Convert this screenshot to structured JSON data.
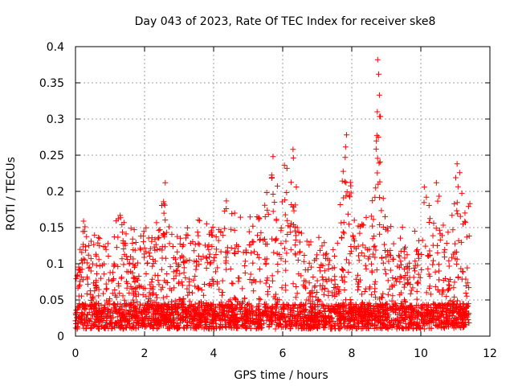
{
  "chart_data": {
    "type": "scatter",
    "title": "Day 043 of 2023, Rate Of TEC Index for receiver ske8",
    "xlabel": "GPS time / hours",
    "ylabel": "ROTI / TECUs",
    "xlim": [
      0,
      12
    ],
    "ylim": [
      0,
      0.4
    ],
    "x_ticks": [
      0,
      2,
      4,
      6,
      8,
      10,
      12
    ],
    "x_tick_labels": [
      "0",
      "2",
      "4",
      "6",
      "8",
      "10",
      "12"
    ],
    "y_ticks": [
      0,
      0.05,
      0.1,
      0.15,
      0.2,
      0.25,
      0.3,
      0.35,
      0.4
    ],
    "y_tick_labels": [
      "0",
      "0.05",
      "0.1",
      "0.15",
      "0.2",
      "0.25",
      "0.3",
      "0.35",
      "0.4"
    ],
    "grid": true,
    "marker": "+",
    "color": "#ff0000",
    "series": [
      {
        "name": "ROTI",
        "envelope": [
          {
            "x": 0.0,
            "y": 0.095
          },
          {
            "x": 0.2,
            "y": 0.165
          },
          {
            "x": 0.4,
            "y": 0.14
          },
          {
            "x": 0.7,
            "y": 0.14
          },
          {
            "x": 1.0,
            "y": 0.13
          },
          {
            "x": 1.25,
            "y": 0.175
          },
          {
            "x": 1.5,
            "y": 0.15
          },
          {
            "x": 2.0,
            "y": 0.155
          },
          {
            "x": 2.3,
            "y": 0.15
          },
          {
            "x": 2.6,
            "y": 0.21
          },
          {
            "x": 3.0,
            "y": 0.14
          },
          {
            "x": 3.5,
            "y": 0.17
          },
          {
            "x": 4.0,
            "y": 0.15
          },
          {
            "x": 4.4,
            "y": 0.19
          },
          {
            "x": 5.0,
            "y": 0.16
          },
          {
            "x": 5.5,
            "y": 0.205
          },
          {
            "x": 5.7,
            "y": 0.245
          },
          {
            "x": 6.0,
            "y": 0.235
          },
          {
            "x": 6.3,
            "y": 0.255
          },
          {
            "x": 6.6,
            "y": 0.15
          },
          {
            "x": 7.0,
            "y": 0.14
          },
          {
            "x": 7.5,
            "y": 0.12
          },
          {
            "x": 7.85,
            "y": 0.278
          },
          {
            "x": 8.2,
            "y": 0.15
          },
          {
            "x": 8.5,
            "y": 0.17
          },
          {
            "x": 8.75,
            "y": 0.382
          },
          {
            "x": 9.0,
            "y": 0.17
          },
          {
            "x": 9.5,
            "y": 0.15
          },
          {
            "x": 10.0,
            "y": 0.145
          },
          {
            "x": 10.1,
            "y": 0.205
          },
          {
            "x": 10.45,
            "y": 0.21
          },
          {
            "x": 10.8,
            "y": 0.15
          },
          {
            "x": 11.05,
            "y": 0.238
          },
          {
            "x": 11.4,
            "y": 0.183
          }
        ],
        "notable_points": [
          {
            "x": 8.75,
            "y": 0.382
          },
          {
            "x": 8.78,
            "y": 0.362
          },
          {
            "x": 8.8,
            "y": 0.333
          },
          {
            "x": 8.74,
            "y": 0.31
          },
          {
            "x": 8.77,
            "y": 0.275
          },
          {
            "x": 7.85,
            "y": 0.278
          },
          {
            "x": 6.3,
            "y": 0.258
          },
          {
            "x": 5.72,
            "y": 0.248
          },
          {
            "x": 6.05,
            "y": 0.236
          },
          {
            "x": 11.05,
            "y": 0.238
          },
          {
            "x": 10.45,
            "y": 0.212
          },
          {
            "x": 2.6,
            "y": 0.212
          },
          {
            "x": 10.1,
            "y": 0.206
          },
          {
            "x": 11.42,
            "y": 0.183
          }
        ]
      }
    ]
  }
}
